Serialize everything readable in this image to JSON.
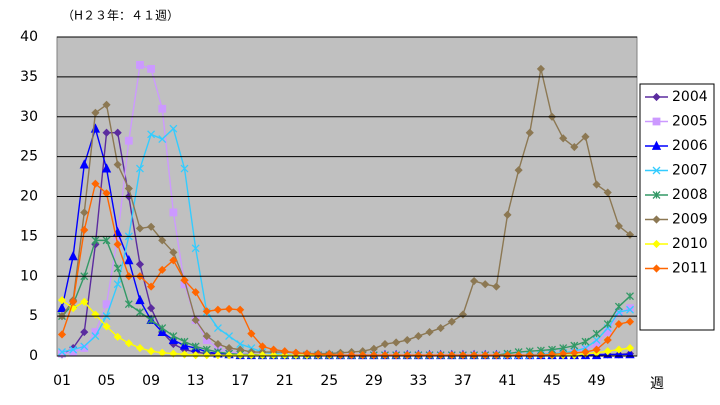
{
  "chart_data": {
    "type": "line",
    "title": "（H２３年：４１週）",
    "x_label": "週",
    "categories": [
      "01",
      null,
      null,
      null,
      "05",
      null,
      null,
      null,
      "09",
      null,
      null,
      null,
      "13",
      null,
      null,
      null,
      "17",
      null,
      null,
      null,
      "21",
      null,
      null,
      null,
      "25",
      null,
      null,
      null,
      "29",
      null,
      null,
      null,
      "33",
      null,
      null,
      null,
      "37",
      null,
      null,
      null,
      "41",
      null,
      null,
      null,
      "45",
      null,
      null,
      null,
      "49",
      null,
      null,
      null
    ],
    "ylim": [
      0,
      40
    ],
    "yticks": [
      0,
      5,
      10,
      15,
      20,
      25,
      30,
      35,
      40
    ],
    "grid": true,
    "legend": "right",
    "series": [
      {
        "name": "2004",
        "color": "#5b2c9f",
        "marker": "diamond",
        "values": [
          0.2,
          1,
          3,
          14,
          28,
          28,
          20,
          11.5,
          6,
          3,
          1.5,
          0.8,
          0.5,
          0.3,
          0.2,
          0.1,
          0.1,
          0.1,
          0.1,
          0.1,
          0.1,
          0.1,
          0.1,
          0.1,
          0.1,
          0.1,
          0.1,
          0.1,
          0.1,
          0.1,
          0.1,
          0.1,
          0.1,
          0.1,
          0.1,
          0.1,
          0.1,
          0.1,
          0.1,
          0.1,
          0.1,
          0.1,
          0.1,
          0.1,
          0.1,
          0.1,
          0.1,
          0.1,
          0.2,
          0.2,
          0.2,
          0.3
        ]
      },
      {
        "name": "2005",
        "color": "#cc99ff",
        "marker": "square",
        "values": [
          0.3,
          0.5,
          1,
          3,
          6.5,
          15,
          27,
          36.5,
          36,
          31,
          18,
          9,
          4.5,
          2,
          1,
          0.5,
          0.3,
          0.2,
          0.1,
          0.1,
          0.1,
          0.1,
          0.1,
          0.1,
          0.1,
          0.1,
          0.1,
          0.1,
          0.1,
          0.1,
          0.1,
          0.1,
          0.1,
          0.1,
          0.1,
          0.1,
          0.1,
          0.1,
          0.1,
          0.1,
          0.1,
          0.1,
          0.1,
          0.2,
          0.2,
          0.3,
          0.5,
          0.8,
          1.5,
          3,
          5.5,
          6
        ]
      },
      {
        "name": "2006",
        "color": "#0000ff",
        "marker": "triangle",
        "values": [
          6,
          12.5,
          24,
          28.5,
          23.5,
          15.5,
          12,
          7,
          4.5,
          3,
          2,
          1.3,
          1,
          0.5,
          0.3,
          0.2,
          0.1,
          0.1,
          0.1,
          0.1,
          0.1,
          0.1,
          0.1,
          0.1,
          0.1,
          0.1,
          0.1,
          0.1,
          0.1,
          0.1,
          0.1,
          0.1,
          0.1,
          0.1,
          0.1,
          0.1,
          0.1,
          0.1,
          0.1,
          0.1,
          0.1,
          0.1,
          0.1,
          0.1,
          0.1,
          0.1,
          0.1,
          0.1,
          0.1,
          0.2,
          0.2,
          0.2
        ]
      },
      {
        "name": "2007",
        "color": "#33ccff",
        "marker": "x",
        "values": [
          0.5,
          0.8,
          1.2,
          2.5,
          5,
          9,
          15,
          23.5,
          27.8,
          27.2,
          28.5,
          23.5,
          13.5,
          5.5,
          3.5,
          2.5,
          1.5,
          1,
          0.5,
          0.3,
          0.2,
          0.1,
          0.1,
          0.1,
          0.1,
          0.1,
          0.1,
          0.1,
          0.1,
          0.1,
          0.1,
          0.1,
          0.1,
          0.1,
          0.1,
          0.1,
          0.1,
          0.1,
          0.1,
          0.1,
          0.1,
          0.1,
          0.1,
          0.2,
          0.3,
          0.4,
          0.6,
          1,
          2,
          3.5,
          5.5,
          5.8
        ]
      },
      {
        "name": "2008",
        "color": "#339966",
        "marker": "star",
        "values": [
          5,
          6.5,
          10,
          14.5,
          14.5,
          11,
          6.5,
          5.5,
          4.5,
          3.5,
          2.5,
          1.8,
          1.2,
          0.8,
          0.5,
          0.3,
          0.2,
          0.2,
          0.1,
          0.1,
          0.1,
          0.1,
          0.1,
          0.1,
          0.1,
          0.1,
          0.1,
          0.1,
          0.1,
          0.1,
          0.1,
          0.1,
          0.1,
          0.1,
          0.1,
          0.1,
          0.1,
          0.1,
          0.1,
          0.1,
          0.3,
          0.5,
          0.6,
          0.7,
          0.8,
          1,
          1.3,
          1.8,
          2.8,
          4,
          6.2,
          7.5
        ]
      },
      {
        "name": "2009",
        "color": "#8c7853",
        "marker": "diamond",
        "values": [
          5,
          7,
          18,
          30.5,
          31.5,
          24,
          21,
          16,
          16.2,
          14.5,
          13,
          9.5,
          4.5,
          2.5,
          1.5,
          1,
          0.8,
          0.5,
          0.5,
          0.5,
          0.5,
          0.4,
          0.3,
          0.3,
          0.3,
          0.4,
          0.5,
          0.6,
          0.9,
          1.5,
          1.7,
          2,
          2.5,
          3,
          3.5,
          4.3,
          5.2,
          9.4,
          9,
          8.7,
          17.7,
          23.3,
          28,
          36,
          30,
          27.3,
          26.2,
          27.5,
          21.5,
          20.5,
          16.3,
          15.2
        ]
      },
      {
        "name": "2010",
        "color": "#ffff00",
        "marker": "diamond",
        "values": [
          7,
          6,
          6.8,
          5.2,
          3.7,
          2.4,
          1.6,
          1,
          0.6,
          0.4,
          0.3,
          0.2,
          0.1,
          0.1,
          0.1,
          0.1,
          0.1,
          0.1,
          0.1,
          0.1,
          0.1,
          0.1,
          0.1,
          0.1,
          0.1,
          0.1,
          0.1,
          0.1,
          0.1,
          0.1,
          0.1,
          0.1,
          0.1,
          0.1,
          0.1,
          0.1,
          0.1,
          0.1,
          0.1,
          0.1,
          0.1,
          0.1,
          0.1,
          0.1,
          0.1,
          0.1,
          0.1,
          0.3,
          0.4,
          0.6,
          0.8,
          1
        ]
      },
      {
        "name": "2011",
        "color": "#ff6600",
        "marker": "diamond",
        "values": [
          2.7,
          6.8,
          15.8,
          21.6,
          20.4,
          14,
          10,
          10,
          8.7,
          10.8,
          12,
          9.5,
          8,
          5.6,
          5.8,
          5.9,
          5.8,
          2.8,
          1.2,
          0.8,
          0.6,
          0.4,
          0.3,
          0.2,
          0.2,
          0.1,
          0.1,
          0.1,
          0.1,
          0.1,
          0.1,
          0.1,
          0.1,
          0.1,
          0.1,
          0.1,
          0.1,
          0.1,
          0.1,
          0.1,
          0.1,
          0.1,
          0.1,
          0.1,
          0.2,
          0.3,
          0.4,
          0.5,
          0.8,
          2,
          4,
          4.3
        ]
      }
    ]
  }
}
